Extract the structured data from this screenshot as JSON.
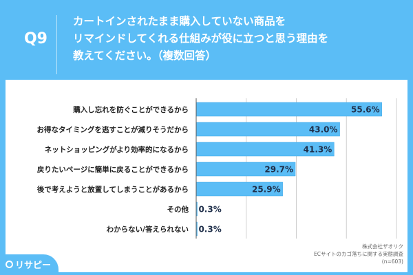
{
  "header": {
    "question_number": "Q9",
    "title_lines": [
      "カートインされたまま購入していない商品を",
      "リマインドしてくれる仕組みが役に立つと思う理由を",
      "教えてください。（複数回答）"
    ]
  },
  "colors": {
    "background": "#5bbdf6",
    "bar": "#5bbdf6",
    "bar_edge": "#3aa6e6"
  },
  "chart_data": {
    "type": "bar",
    "orientation": "horizontal",
    "categories": [
      "購入し忘れを防ぐことができるから",
      "お得なタイミングを逃すことが減りそうだから",
      "ネットショッピングがより効率的になるから",
      "戻りたいページに簡単に戻ることができるから",
      "後で考えようと放置してしまうことがあるから",
      "その他",
      "わからない/答えられない"
    ],
    "values": [
      55.6,
      43.0,
      41.3,
      29.7,
      25.9,
      0.3,
      0.3
    ],
    "value_labels": [
      "55.6%",
      "43.0%",
      "41.3%",
      "29.7%",
      "25.9%",
      "0.3%",
      "0.3%"
    ],
    "xlim": [
      0,
      60
    ],
    "grid": true,
    "grid_step": 15
  },
  "source": {
    "company": "株式会社ザオリク",
    "survey": "ECサイトのカゴ落ちに関する実態調査",
    "sample": "(n=603)"
  },
  "logo": {
    "text": "リサピー"
  }
}
